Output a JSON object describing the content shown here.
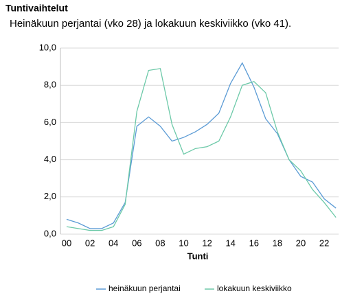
{
  "chart_data": {
    "type": "line",
    "title": "Tuntivaihtelut",
    "subtitle": "Heinäkuun perjantai (vko 28) ja lokakuun keskiviikko (vko 41).",
    "x_label": "Tunti",
    "categories": [
      "00",
      null,
      "02",
      null,
      "04",
      null,
      "06",
      null,
      "08",
      null,
      "10",
      null,
      "12",
      null,
      "14",
      null,
      "16",
      null,
      "18",
      null,
      "20",
      null,
      "22",
      null
    ],
    "series": [
      {
        "name": "heinäkuun perjantai",
        "color": "#5b9bd5",
        "values": [
          0.8,
          0.6,
          0.3,
          0.3,
          0.6,
          1.7,
          5.8,
          6.3,
          5.8,
          5.0,
          5.2,
          5.5,
          5.9,
          6.5,
          8.1,
          9.2,
          7.9,
          6.2,
          5.4,
          4.0,
          3.1,
          2.8,
          1.9,
          1.4
        ]
      },
      {
        "name": "lokakuun keskiviikko",
        "color": "#6cc9a8",
        "values": [
          0.4,
          0.3,
          0.2,
          0.2,
          0.4,
          1.6,
          6.6,
          8.8,
          8.9,
          5.9,
          4.3,
          4.6,
          4.7,
          5.0,
          6.3,
          8.0,
          8.2,
          7.6,
          5.5,
          4.0,
          3.4,
          2.4,
          1.7,
          0.9
        ]
      }
    ],
    "ylim": [
      0,
      10
    ],
    "yticks": [
      {
        "value": 0,
        "label": "0,0"
      },
      {
        "value": 2,
        "label": "2,0"
      },
      {
        "value": 4,
        "label": "4,0"
      },
      {
        "value": 6,
        "label": "6,0"
      },
      {
        "value": 8,
        "label": "8,0"
      },
      {
        "value": 10,
        "label": "10,0"
      }
    ],
    "grid": true,
    "legend": "bottom"
  }
}
